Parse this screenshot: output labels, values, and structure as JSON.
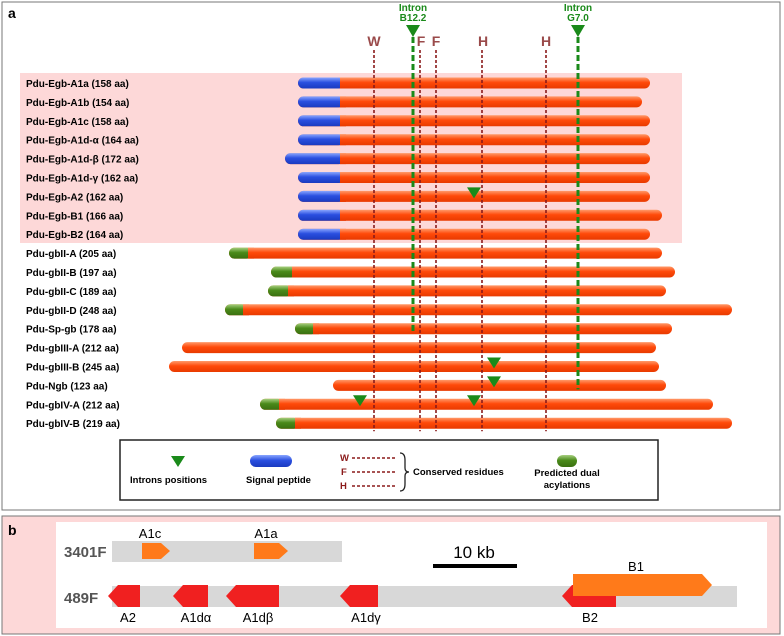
{
  "panel_a": {
    "label": "a",
    "top_markers": [
      {
        "id": "intron-b12",
        "line1": "Intron",
        "line2": "B12.2",
        "pos": 0.0
      },
      {
        "id": "intron-g7",
        "line1": "Intron",
        "line2": "G7.0",
        "pos": 0.0
      }
    ],
    "residue_markers": [
      "W",
      "F",
      "F",
      "H",
      "H"
    ],
    "rows": [
      {
        "label": "Pdu-Egb-A1a (158 aa)"
      },
      {
        "label": "Pdu-Egb-A1b (154 aa)"
      },
      {
        "label": "Pdu-Egb-A1c (158 aa)"
      },
      {
        "label": "Pdu-Egb-A1d-α (164 aa)"
      },
      {
        "label": "Pdu-Egb-A1d-β (172 aa)"
      },
      {
        "label": "Pdu-Egb-A1d-γ (162 aa)"
      },
      {
        "label": "Pdu-Egb-A2 (162 aa)"
      },
      {
        "label": "Pdu-Egb-B1 (166 aa)"
      },
      {
        "label": "Pdu-Egb-B2 (164 aa)"
      },
      {
        "label": "Pdu-gbII-A (205 aa)"
      },
      {
        "label": "Pdu-gbII-B (197 aa)"
      },
      {
        "label": "Pdu-gbII-C (189 aa)"
      },
      {
        "label": "Pdu-gbII-D (248 aa)"
      },
      {
        "label": "Pdu-Sp-gb (178 aa)"
      },
      {
        "label": "Pdu-gbIII-A (212 aa)"
      },
      {
        "label": "Pdu-gbIII-B (245 aa)"
      },
      {
        "label": "Pdu-Ngb (123 aa)"
      },
      {
        "label": "Pdu-gbIV-A (212 aa)"
      },
      {
        "label": "Pdu-gbIV-B (219 aa)"
      }
    ],
    "legend": {
      "introns": "Introns positions",
      "signal": "Signal peptide",
      "conserved": "Conserved residues",
      "conserved_letters": [
        "W",
        "F",
        "H"
      ],
      "dual_line1": "Predicted dual",
      "dual_line2": "acylations"
    }
  },
  "panel_b": {
    "label": "b",
    "scaffold1": "3401F",
    "scaffold2": "489F",
    "scale_label": "10 kb",
    "genes_top": [
      "A1c",
      "A1a",
      "B1"
    ],
    "genes_bottom": [
      "A2",
      "A1dα",
      "A1dβ",
      "A1dγ",
      "B2"
    ]
  },
  "colors": {
    "orange": "#ff5a1a",
    "blue": "#3a5fd9",
    "green": "#5a9a2a",
    "pink": "#fdd8d8",
    "dark_red": "#8b1a1a",
    "intron_green": "#1a8a1a"
  }
}
